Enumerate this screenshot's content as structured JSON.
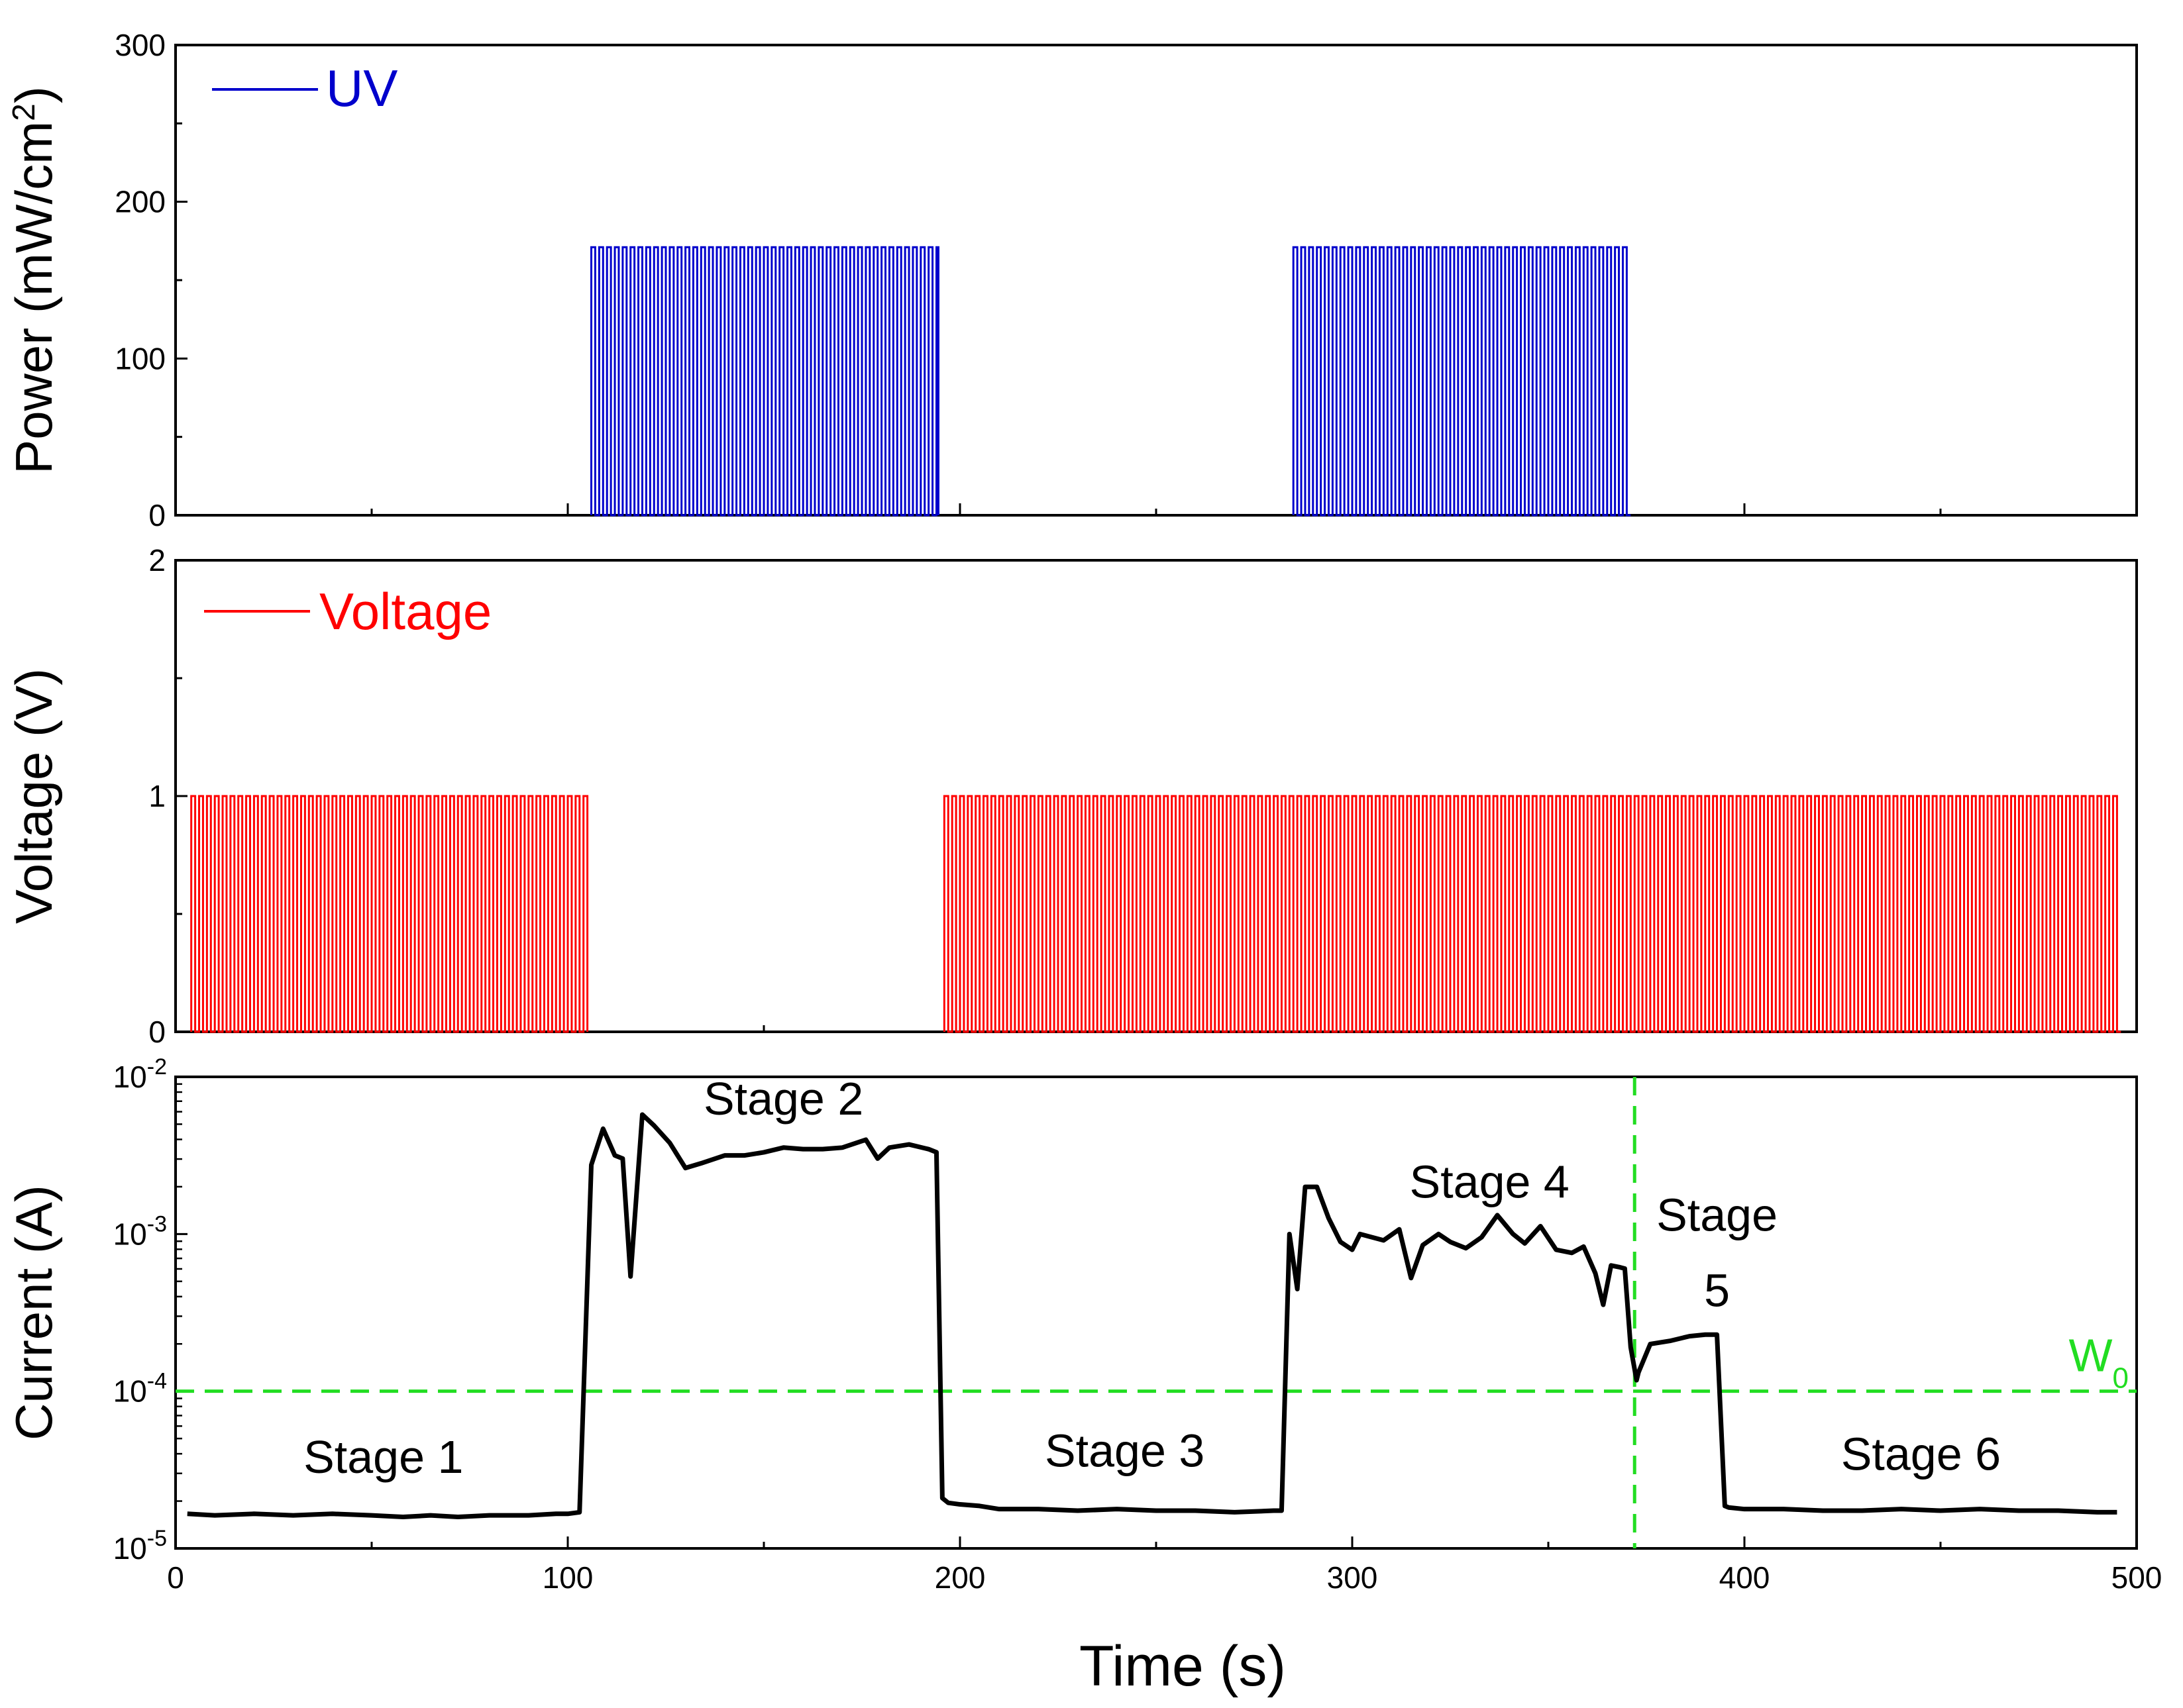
{
  "chart_data": [
    {
      "type": "line",
      "panel": "top",
      "ylabel": "Power (mW/cm",
      "ylabel_sup": "2",
      "ylabel_end": ")",
      "ylim": [
        0,
        300
      ],
      "yticks": [
        "0",
        "100",
        "200",
        "300"
      ],
      "ytick_values": [
        0,
        100,
        200,
        300
      ],
      "xlim": [
        0,
        500
      ],
      "legend": "top-left",
      "series": [
        {
          "name": "UV",
          "color": "#0000cc",
          "high": 171,
          "low": 0,
          "pulse_trains": [
            {
              "start": 106,
              "end": 194.5,
              "period": 2.0
            },
            {
              "start": 285,
              "end": 371,
              "period": 2.0
            }
          ]
        }
      ]
    },
    {
      "type": "line",
      "panel": "middle",
      "ylabel": "Voltage (V)",
      "ylim": [
        0,
        2
      ],
      "yticks": [
        "0",
        "1",
        "2"
      ],
      "ytick_values": [
        0,
        1,
        2
      ],
      "xlim": [
        0,
        500
      ],
      "legend": "top-left",
      "series": [
        {
          "name": "Voltage",
          "color": "#ff0000",
          "high": 1,
          "low": 0,
          "pulse_trains": [
            {
              "start": 4,
              "end": 105,
              "period": 2.0
            },
            {
              "start": 196,
              "end": 496,
              "period": 2.0
            }
          ]
        }
      ]
    },
    {
      "type": "line",
      "panel": "bottom",
      "ylabel": "Current (A)",
      "yscale": "log",
      "ylim_exponents": [
        -5,
        -2
      ],
      "ytick_base": "10",
      "ytick_exponents": [
        "-5",
        "-4",
        "-3",
        "-2"
      ],
      "xlabel": "Time (s)",
      "xlim": [
        0,
        500
      ],
      "xticks": [
        "0",
        "100",
        "200",
        "300",
        "400",
        "500"
      ],
      "xtick_values": [
        0,
        100,
        200,
        300,
        400,
        500
      ],
      "series": [
        {
          "name": "Current",
          "color": "#000000",
          "x": [
            3,
            10,
            20,
            30,
            40,
            50,
            58,
            65,
            72,
            80,
            90,
            97,
            100,
            103,
            106,
            109,
            112,
            114,
            116,
            119,
            122,
            126,
            130,
            134,
            140,
            145,
            150,
            155,
            160,
            165,
            170,
            176,
            179,
            182,
            187,
            192,
            194,
            195.5,
            197,
            200,
            205,
            210,
            220,
            230,
            240,
            250,
            260,
            270,
            280,
            282,
            284,
            286,
            288,
            291,
            294,
            297,
            300,
            302,
            305,
            308,
            312,
            315,
            318,
            322,
            325,
            329,
            333,
            337,
            341,
            344,
            348,
            352,
            356,
            359,
            362,
            364,
            366,
            368,
            369.5,
            371,
            372.5,
            373,
            376,
            381,
            386,
            390,
            393,
            395,
            396,
            400,
            410,
            420,
            430,
            440,
            450,
            460,
            470,
            480,
            490,
            495
          ],
          "y_exp": [
            -4.78,
            -4.79,
            -4.78,
            -4.79,
            -4.78,
            -4.79,
            -4.8,
            -4.79,
            -4.8,
            -4.79,
            -4.79,
            -4.78,
            -4.78,
            -4.77,
            -2.56,
            -2.33,
            -2.5,
            -2.52,
            -3.27,
            -2.24,
            -2.31,
            -2.42,
            -2.58,
            -2.55,
            -2.5,
            -2.5,
            -2.48,
            -2.45,
            -2.46,
            -2.46,
            -2.45,
            -2.4,
            -2.52,
            -2.45,
            -2.43,
            -2.46,
            -2.48,
            -4.68,
            -4.71,
            -4.72,
            -4.73,
            -4.75,
            -4.75,
            -4.76,
            -4.75,
            -4.76,
            -4.76,
            -4.77,
            -4.76,
            -4.76,
            -3.0,
            -3.35,
            -2.7,
            -2.7,
            -2.9,
            -3.05,
            -3.1,
            -3.0,
            -3.02,
            -3.04,
            -2.97,
            -3.28,
            -3.07,
            -3.0,
            -3.05,
            -3.09,
            -3.02,
            -2.88,
            -3.0,
            -3.06,
            -2.95,
            -3.1,
            -3.12,
            -3.08,
            -3.25,
            -3.45,
            -3.2,
            -3.21,
            -3.22,
            -3.72,
            -3.93,
            -3.88,
            -3.7,
            -3.68,
            -3.65,
            -3.64,
            -3.64,
            -4.73,
            -4.74,
            -4.75,
            -4.75,
            -4.76,
            -4.76,
            -4.75,
            -4.76,
            -4.75,
            -4.76,
            -4.76,
            -4.77,
            -4.77
          ]
        }
      ],
      "reference_lines": [
        {
          "orientation": "horizontal",
          "value_exp": -4,
          "color": "#22dd22",
          "style": "dashed",
          "label": "W",
          "label_sub": "0"
        },
        {
          "orientation": "vertical",
          "value": 372,
          "color": "#22dd22",
          "style": "dashed"
        }
      ],
      "annotations": [
        {
          "text": "Stage 1",
          "x": 53,
          "y_exp": -4.52
        },
        {
          "text": "Stage 2",
          "x": 155,
          "y_exp": -2.24
        },
        {
          "text": "Stage 3",
          "x": 242,
          "y_exp": -4.48
        },
        {
          "text": "Stage 4",
          "x": 335,
          "y_exp": -2.77
        },
        {
          "text": "Stage",
          "x": 393,
          "y_exp": -2.98
        },
        {
          "text": "5",
          "x": 393,
          "y_exp": -3.46
        },
        {
          "text": "Stage 6",
          "x": 445,
          "y_exp": -4.5
        }
      ]
    }
  ]
}
